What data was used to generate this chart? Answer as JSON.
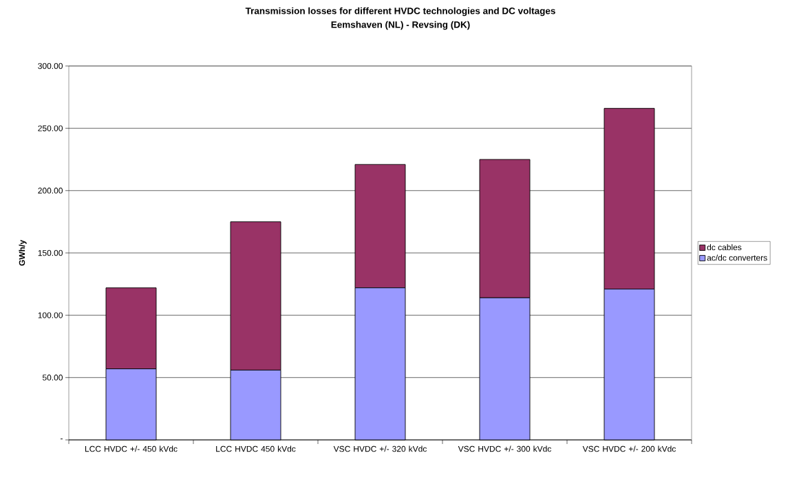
{
  "chart_data": {
    "type": "bar",
    "stacked": true,
    "title": "Transmission losses for different HVDC technologies and DC voltages",
    "subtitle": "Eemshaven (NL) - Revsing (DK)",
    "ylabel": "GWh/y",
    "categories": [
      "LCC HVDC +/- 450 kVdc",
      "LCC HVDC 450 kVdc",
      "VSC HVDC +/- 320 kVdc",
      "VSC HVDC +/- 300 kVdc",
      "VSC HVDC +/- 200 kVdc"
    ],
    "series": [
      {
        "name": "ac/dc converters",
        "color": "#9999ff",
        "values": [
          57,
          56,
          122,
          114,
          121
        ]
      },
      {
        "name": "dc cables",
        "color": "#993366",
        "values": [
          65,
          119,
          99,
          111,
          145
        ]
      }
    ],
    "ylim": [
      0,
      300
    ],
    "yticks": [
      {
        "value": 0,
        "label": "-"
      },
      {
        "value": 50,
        "label": "50.00"
      },
      {
        "value": 100,
        "label": "100.00"
      },
      {
        "value": 150,
        "label": "150.00"
      },
      {
        "value": 200,
        "label": "200.00"
      },
      {
        "value": 250,
        "label": "250.00"
      },
      {
        "value": 300,
        "label": "300.00"
      }
    ],
    "grid": "y",
    "legend": "right"
  }
}
